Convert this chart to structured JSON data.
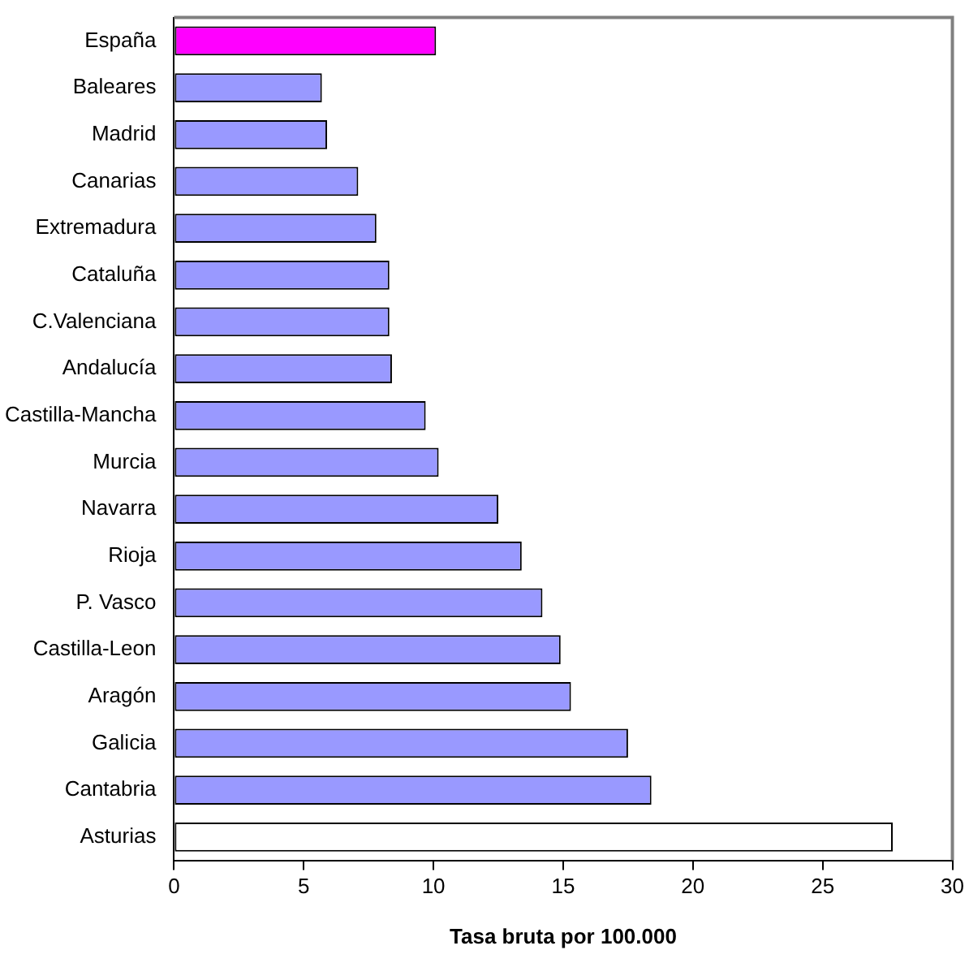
{
  "chart_data": {
    "type": "bar",
    "orientation": "horizontal",
    "xlabel": "Tasa bruta por 100.000",
    "categories": [
      "España",
      "Baleares",
      "Madrid",
      "Canarias",
      "Extremadura",
      "Cataluña",
      "C.Valenciana",
      "Andalucía",
      "Castilla-Mancha",
      "Murcia",
      "Navarra",
      "Rioja",
      "P. Vasco",
      "Castilla-Leon",
      "Aragón",
      "Galicia",
      "Cantabria",
      "Asturias"
    ],
    "values": [
      10.1,
      5.7,
      5.9,
      7.1,
      7.8,
      8.3,
      8.3,
      8.4,
      9.7,
      10.2,
      12.5,
      13.4,
      14.2,
      14.9,
      15.3,
      17.5,
      18.4,
      27.7
    ],
    "colors": [
      "#ff00ff",
      "#9999ff",
      "#9999ff",
      "#9999ff",
      "#9999ff",
      "#9999ff",
      "#9999ff",
      "#9999ff",
      "#9999ff",
      "#9999ff",
      "#9999ff",
      "#9999ff",
      "#9999ff",
      "#9999ff",
      "#9999ff",
      "#9999ff",
      "#9999ff",
      "#ffffff"
    ],
    "xlim": [
      0,
      30
    ],
    "xticks": [
      0,
      5,
      10,
      15,
      20,
      25,
      30
    ],
    "grid": false,
    "legend": false
  }
}
